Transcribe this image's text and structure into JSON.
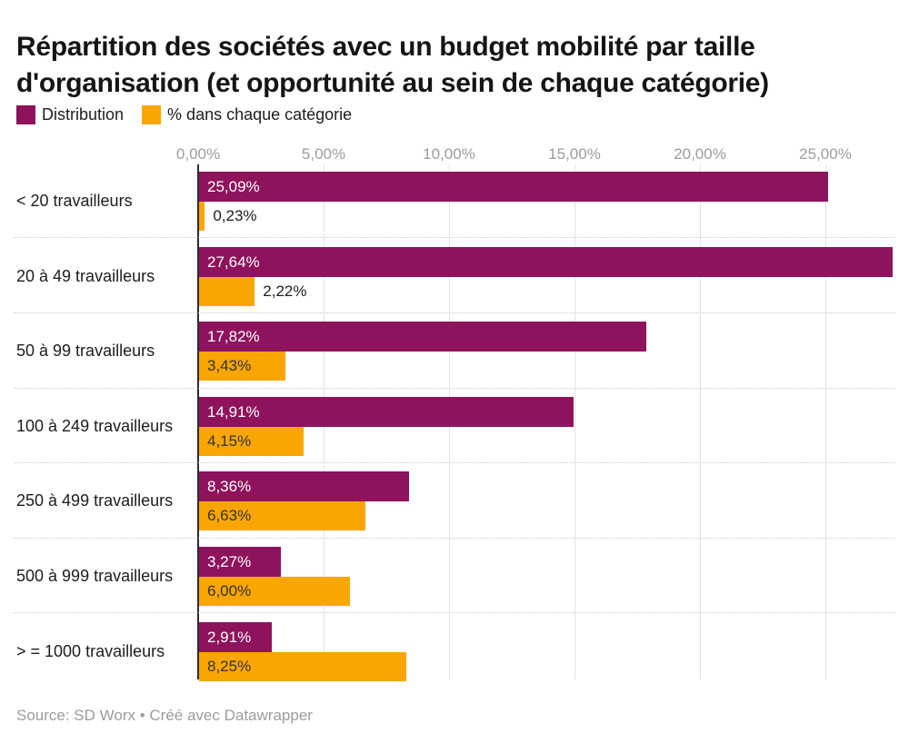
{
  "header": {
    "title": "Répartition des sociétés avec un budget mobilité par taille\nd'organisation (et opportunité au sein de chaque catégorie)"
  },
  "legend": {
    "items": [
      {
        "label": "Distribution",
        "color": "#8E135C"
      },
      {
        "label": "% dans chaque catégorie",
        "color": "#F9A602"
      }
    ]
  },
  "footer": {
    "text": "Source: SD Worx • Créé avec Datawrapper"
  },
  "chart_data": {
    "type": "bar",
    "orientation": "horizontal",
    "title": "Répartition des sociétés avec un budget mobilité par taille d'organisation (et opportunité au sein de chaque catégorie)",
    "categories": [
      "< 20 travailleurs",
      "20 à 49 travailleurs",
      "50 à 99 travailleurs",
      "100 à 249 travailleurs",
      "250 à 499 travailleurs",
      "500 à 999 travailleurs",
      "> = 1000 travailleurs"
    ],
    "series": [
      {
        "name": "Distribution",
        "color": "#8E135C",
        "values": [
          25.09,
          27.64,
          17.82,
          14.91,
          8.36,
          3.27,
          2.91
        ],
        "labels": [
          "25,09%",
          "27,64%",
          "17,82%",
          "14,91%",
          "8,36%",
          "3,27%",
          "2,91%"
        ]
      },
      {
        "name": "% dans chaque catégorie",
        "color": "#F9A602",
        "values": [
          0.23,
          2.22,
          3.43,
          4.15,
          6.63,
          6.0,
          8.25
        ],
        "labels": [
          "0,23%",
          "2,22%",
          "3,43%",
          "4,15%",
          "6,63%",
          "6,00%",
          "8,25%"
        ]
      }
    ],
    "x_axis": {
      "tick_labels": [
        "0,00%",
        "5,00%",
        "10,00%",
        "15,00%",
        "20,00%",
        "25,00%"
      ],
      "tick_values": [
        0,
        5,
        10,
        15,
        20,
        25
      ],
      "range": [
        0,
        28.33
      ],
      "gridlines": true
    },
    "value_label_colors": {
      "on_distribution_bar": "#ffffff",
      "on_category_bar": "#333333",
      "outside_bar": "#1d1d1d"
    },
    "legend_position": "top-left"
  }
}
